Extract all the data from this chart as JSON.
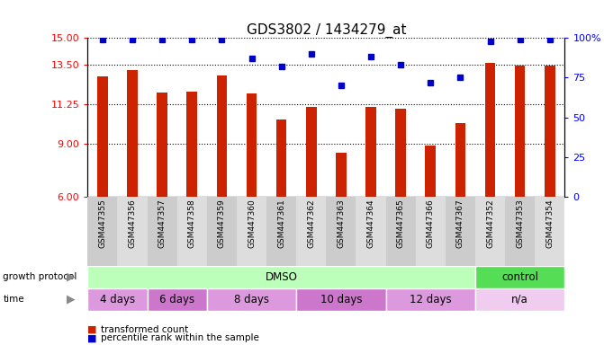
{
  "title": "GDS3802 / 1434279_at",
  "samples": [
    "GSM447355",
    "GSM447356",
    "GSM447357",
    "GSM447358",
    "GSM447359",
    "GSM447360",
    "GSM447361",
    "GSM447362",
    "GSM447363",
    "GSM447364",
    "GSM447365",
    "GSM447366",
    "GSM447367",
    "GSM447352",
    "GSM447353",
    "GSM447354"
  ],
  "bar_values": [
    12.8,
    13.2,
    11.9,
    11.95,
    12.85,
    11.85,
    10.4,
    11.1,
    8.5,
    11.1,
    11.0,
    8.9,
    10.15,
    13.6,
    13.45,
    13.45
  ],
  "percentile_values": [
    99,
    99,
    99,
    99,
    99,
    87,
    82,
    90,
    70,
    88,
    83,
    72,
    75,
    98,
    99,
    99
  ],
  "ylim_left": [
    6,
    15
  ],
  "yticks_left": [
    6,
    9,
    11.25,
    13.5,
    15
  ],
  "ylim_right": [
    0,
    100
  ],
  "yticks_right": [
    0,
    25,
    50,
    75,
    100
  ],
  "bar_color": "#cc2200",
  "dot_color": "#0000cc",
  "growth_protocol_groups": [
    {
      "label": "DMSO",
      "start": 0,
      "end": 13,
      "color": "#bbffbb"
    },
    {
      "label": "control",
      "start": 13,
      "end": 16,
      "color": "#55dd55"
    }
  ],
  "time_groups": [
    {
      "label": "4 days",
      "start": 0,
      "end": 2,
      "color": "#dd99dd"
    },
    {
      "label": "6 days",
      "start": 2,
      "end": 4,
      "color": "#cc77cc"
    },
    {
      "label": "8 days",
      "start": 4,
      "end": 7,
      "color": "#dd99dd"
    },
    {
      "label": "10 days",
      "start": 7,
      "end": 10,
      "color": "#cc77cc"
    },
    {
      "label": "12 days",
      "start": 10,
      "end": 13,
      "color": "#dd99dd"
    },
    {
      "label": "n/a",
      "start": 13,
      "end": 16,
      "color": "#f0ccf0"
    }
  ],
  "legend_items": [
    {
      "label": "transformed count",
      "color": "#cc2200"
    },
    {
      "label": "percentile rank within the sample",
      "color": "#0000cc"
    }
  ],
  "title_fontsize": 11,
  "tick_fontsize": 8,
  "annotation_fontsize": 8
}
